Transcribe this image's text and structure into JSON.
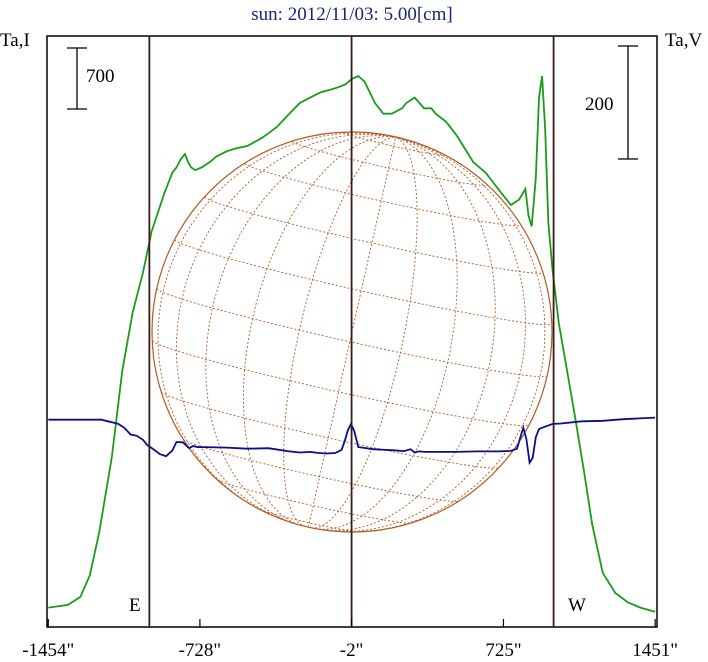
{
  "chart_data": {
    "type": "line",
    "title": "sun: 2012/11/03: 5.00[cm]",
    "left_axis_label": "Ta,I",
    "right_axis_label": "Ta,V",
    "x_ticks": [
      "-1454\"",
      "-728\"",
      "-2\"",
      "725\"",
      "1451\""
    ],
    "x_tick_values": [
      -1454,
      -728,
      -2,
      725,
      1451
    ],
    "xlim": [
      -1460,
      1460
    ],
    "limb_labels": {
      "east": "E",
      "west": "W"
    },
    "limb_positions": [
      -970,
      965
    ],
    "scale_bars": {
      "left": {
        "label": "700",
        "length_units": 700
      },
      "right": {
        "label": "200",
        "length_units": 200
      }
    },
    "series": [
      {
        "name": "",
        "color": "#1a9c1a",
        "x": [
          -1454,
          -1360,
          -1300,
          -1255,
          -1210,
          -1150,
          -1100,
          -1050,
          -1000,
          -960,
          -900,
          -860,
          -840,
          -820,
          -800,
          -785,
          -770,
          -750,
          -720,
          -680,
          -650,
          -600,
          -560,
          -500,
          -430,
          -360,
          -300,
          -250,
          -200,
          -150,
          -100,
          -60,
          -30,
          0,
          30,
          60,
          110,
          150,
          190,
          240,
          260,
          300,
          345,
          380,
          400,
          450,
          500,
          580,
          640,
          700,
          760,
          800,
          830,
          845,
          860,
          880,
          895,
          910,
          925,
          940,
          960,
          990,
          1030,
          1070,
          1110,
          1150,
          1200,
          1260,
          1320,
          1380,
          1451
        ],
        "values": [
          20,
          30,
          60,
          140,
          300,
          580,
          900,
          1120,
          1270,
          1420,
          1560,
          1640,
          1660,
          1690,
          1710,
          1680,
          1660,
          1650,
          1660,
          1680,
          1700,
          1720,
          1730,
          1740,
          1770,
          1810,
          1860,
          1900,
          1920,
          1940,
          1950,
          1960,
          1970,
          1990,
          2000,
          1980,
          1900,
          1860,
          1860,
          1880,
          1900,
          1920,
          1880,
          1880,
          1860,
          1830,
          1780,
          1680,
          1640,
          1580,
          1520,
          1540,
          1580,
          1480,
          1440,
          1620,
          1920,
          2000,
          1800,
          1450,
          1280,
          1080,
          900,
          720,
          530,
          330,
          150,
          75,
          40,
          20,
          5
        ]
      },
      {
        "name": "",
        "color": "#0d0d8c",
        "x": [
          -1454,
          -1200,
          -1120,
          -1090,
          -1060,
          -1030,
          -1000,
          -980,
          -960,
          -920,
          -890,
          -860,
          -840,
          -810,
          -780,
          -760,
          -740,
          -700,
          -600,
          -500,
          -400,
          -300,
          -250,
          -200,
          -160,
          -120,
          -80,
          -50,
          -35,
          -20,
          -5,
          10,
          30,
          50,
          100,
          200,
          250,
          280,
          300,
          320,
          350,
          400,
          450,
          500,
          600,
          700,
          760,
          790,
          810,
          820,
          835,
          850,
          865,
          880,
          895,
          910,
          930,
          960,
          1000,
          1100,
          1200,
          1300,
          1400,
          1451
        ],
        "values": [
          720,
          720,
          705,
          690,
          665,
          660,
          645,
          625,
          615,
          592,
          584,
          605,
          637,
          636,
          614,
          622,
          618,
          618,
          616,
          612,
          614,
          602,
          598,
          600,
          596,
          594,
          596,
          608,
          640,
          680,
          704,
          680,
          618,
          616,
          610,
          606,
          603,
          610,
          598,
          602,
          600,
          600,
          600,
          600,
          602,
          602,
          604,
          612,
          665,
          690,
          648,
          560,
          578,
          655,
          685,
          690,
          696,
          704,
          706,
          714,
          716,
          722,
          726,
          728
        ]
      }
    ],
    "ylim": [
      0,
      2060
    ]
  }
}
